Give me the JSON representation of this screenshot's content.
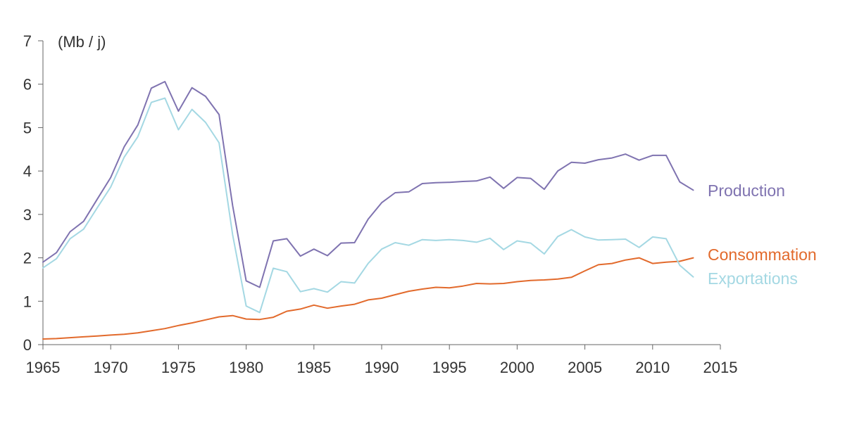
{
  "chart_data": {
    "type": "line",
    "unit_label": "(Mb / j)",
    "xlim": [
      1965,
      2015
    ],
    "ylim": [
      0,
      7
    ],
    "x_ticks": [
      1965,
      1970,
      1975,
      1980,
      1985,
      1990,
      1995,
      2000,
      2005,
      2010,
      2015
    ],
    "y_ticks": [
      0,
      1,
      2,
      3,
      4,
      5,
      6,
      7
    ],
    "legend_placement": "right, at series ends",
    "grid": false,
    "x": [
      1965,
      1966,
      1967,
      1968,
      1969,
      1970,
      1971,
      1972,
      1973,
      1974,
      1975,
      1976,
      1977,
      1978,
      1979,
      1980,
      1981,
      1982,
      1983,
      1984,
      1985,
      1986,
      1987,
      1988,
      1989,
      1990,
      1991,
      1992,
      1993,
      1994,
      1995,
      1996,
      1997,
      1998,
      1999,
      2000,
      2001,
      2002,
      2003,
      2004,
      2005,
      2006,
      2007,
      2008,
      2009,
      2010,
      2011,
      2012,
      2013
    ],
    "series": [
      {
        "name": "Production",
        "color": "#7f73b0",
        "values": [
          1.9,
          2.12,
          2.6,
          2.84,
          3.35,
          3.85,
          4.56,
          5.06,
          5.91,
          6.06,
          5.38,
          5.92,
          5.72,
          5.3,
          3.2,
          1.47,
          1.32,
          2.39,
          2.44,
          2.04,
          2.2,
          2.05,
          2.34,
          2.35,
          2.89,
          3.27,
          3.5,
          3.52,
          3.71,
          3.73,
          3.74,
          3.76,
          3.77,
          3.86,
          3.6,
          3.85,
          3.83,
          3.58,
          4.0,
          4.2,
          4.18,
          4.26,
          4.3,
          4.39,
          4.25,
          4.36,
          4.36,
          3.75,
          3.56
        ]
      },
      {
        "name": "Consommation",
        "color": "#e26a2c",
        "values": [
          0.13,
          0.14,
          0.16,
          0.18,
          0.2,
          0.22,
          0.24,
          0.27,
          0.32,
          0.37,
          0.44,
          0.5,
          0.57,
          0.64,
          0.67,
          0.59,
          0.58,
          0.63,
          0.77,
          0.82,
          0.91,
          0.84,
          0.89,
          0.93,
          1.03,
          1.07,
          1.15,
          1.23,
          1.28,
          1.32,
          1.31,
          1.35,
          1.41,
          1.4,
          1.41,
          1.45,
          1.48,
          1.49,
          1.51,
          1.55,
          1.7,
          1.84,
          1.87,
          1.95,
          2.0,
          1.87,
          1.9,
          1.92,
          2.0
        ]
      },
      {
        "name": "Exportations",
        "color": "#a4d8e3",
        "values": [
          1.77,
          1.98,
          2.44,
          2.66,
          3.15,
          3.63,
          4.32,
          4.79,
          5.58,
          5.68,
          4.95,
          5.42,
          5.12,
          4.65,
          2.53,
          0.89,
          0.74,
          1.76,
          1.68,
          1.22,
          1.29,
          1.21,
          1.45,
          1.42,
          1.87,
          2.2,
          2.35,
          2.29,
          2.42,
          2.4,
          2.42,
          2.4,
          2.36,
          2.45,
          2.19,
          2.39,
          2.34,
          2.09,
          2.49,
          2.65,
          2.48,
          2.41,
          2.42,
          2.43,
          2.24,
          2.48,
          2.44,
          1.83,
          1.56
        ]
      }
    ]
  }
}
